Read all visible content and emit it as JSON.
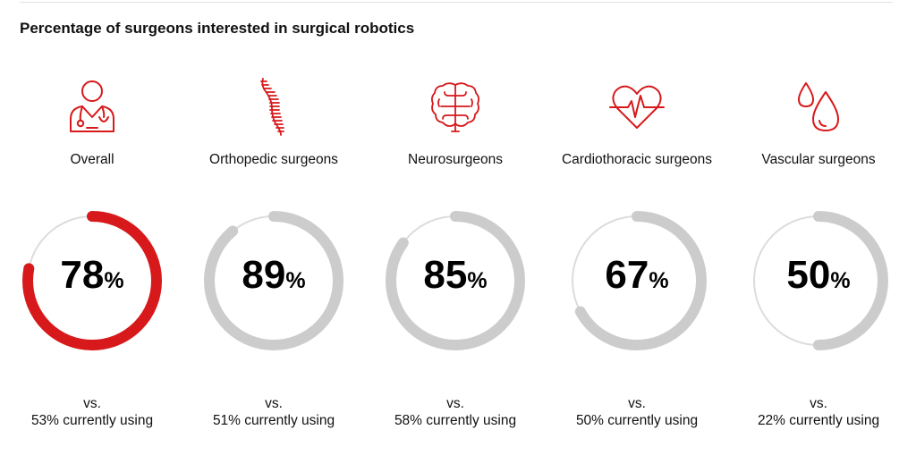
{
  "chart_data": {
    "type": "donut",
    "title": "Percentage of surgeons interested in surgical robotics",
    "categories": [
      "Overall",
      "Orthopedic surgeons",
      "Neurosurgeons",
      "Cardiothoracic surgeons",
      "Vascular surgeons"
    ],
    "values": [
      78,
      89,
      85,
      67,
      50
    ],
    "value_labels": [
      "78",
      "89",
      "85",
      "67",
      "50"
    ],
    "percent_sign": "%",
    "vs_label": "vs.",
    "comparison_values": [
      53,
      51,
      58,
      50,
      22
    ],
    "comparison_labels": [
      "53% currently using",
      "51% currently using",
      "58% currently using",
      "50% currently using",
      "22% currently using"
    ],
    "icons": [
      "doctor-icon",
      "spine-icon",
      "brain-icon",
      "heart-icon",
      "blood-drop-icon"
    ],
    "highlight_index": 0,
    "colors": {
      "highlight": "#d7191b",
      "arc": "#cccccc",
      "track": "#dcdcdc",
      "icon": "#d7191b",
      "text": "#111111"
    }
  }
}
